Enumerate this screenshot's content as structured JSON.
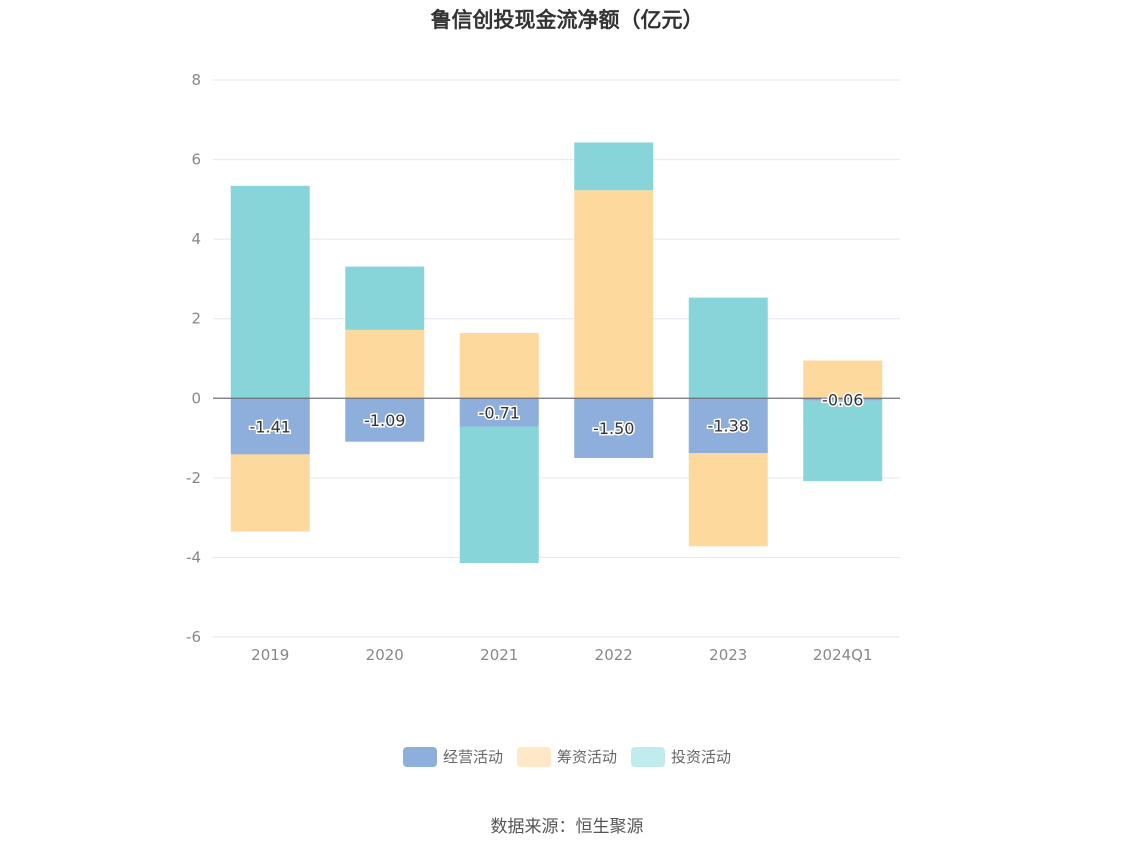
{
  "chart_data": {
    "type": "bar",
    "stacked": true,
    "title": "鲁信创投现金流净额（亿元）",
    "categories": [
      "2019",
      "2020",
      "2021",
      "2022",
      "2023",
      "2024Q1"
    ],
    "series": [
      {
        "name": "经营活动",
        "color": "#8eaedb",
        "values": [
          -1.41,
          -1.09,
          -0.71,
          -1.5,
          -1.38,
          -0.06
        ],
        "labels": [
          "-1.41",
          "-1.09",
          "-0.71",
          "-1.50",
          "-1.38",
          "-0.06"
        ]
      },
      {
        "name": "筹资活动",
        "color": "#fdd99d",
        "values": [
          -1.94,
          1.72,
          1.64,
          5.23,
          -2.34,
          0.95
        ]
      },
      {
        "name": "投资活动",
        "color": "#87d5d9",
        "values": [
          5.34,
          1.59,
          -3.43,
          1.2,
          2.53,
          -2.02
        ]
      }
    ],
    "ylim": [
      -6,
      8
    ],
    "yticks": [
      8,
      6,
      4,
      2,
      0,
      -2,
      -4,
      -6
    ],
    "grid": true,
    "legend_position": "bottom"
  },
  "source_note": "数据来源：恒生聚源"
}
